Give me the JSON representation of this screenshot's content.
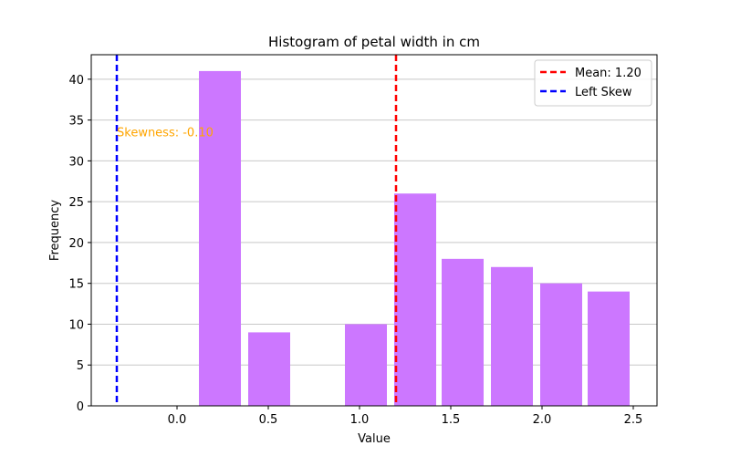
{
  "chart_data": {
    "type": "bar",
    "title": "Histogram of petal width in cm",
    "xlabel": "Value",
    "ylabel": "Frequency",
    "xlim": [
      -0.47,
      2.63
    ],
    "ylim": [
      0,
      43
    ],
    "x_ticks": [
      0.0,
      0.5,
      1.0,
      1.5,
      2.0,
      2.5
    ],
    "x_tick_labels": [
      "0.0",
      "0.5",
      "1.0",
      "1.5",
      "2.0",
      "2.5"
    ],
    "y_ticks": [
      0,
      5,
      10,
      15,
      20,
      25,
      30,
      35,
      40
    ],
    "y_tick_labels": [
      "0",
      "5",
      "10",
      "15",
      "20",
      "25",
      "30",
      "35",
      "40"
    ],
    "grid": "horizontal",
    "bar_color": "#cc77ff",
    "bins": [
      {
        "start": 0.12,
        "end": 0.35,
        "count": 41
      },
      {
        "start": 0.39,
        "end": 0.62,
        "count": 9
      },
      {
        "start": 0.65,
        "end": 0.88,
        "count": 0
      },
      {
        "start": 0.92,
        "end": 1.15,
        "count": 10
      },
      {
        "start": 1.19,
        "end": 1.42,
        "count": 26
      },
      {
        "start": 1.45,
        "end": 1.68,
        "count": 18
      },
      {
        "start": 1.72,
        "end": 1.95,
        "count": 17
      },
      {
        "start": 1.99,
        "end": 2.22,
        "count": 15
      },
      {
        "start": 2.25,
        "end": 2.48,
        "count": 14
      }
    ],
    "vlines": [
      {
        "x": 1.2,
        "color": "#ff0000",
        "label": "Mean: 1.20"
      },
      {
        "x": -0.33,
        "color": "#0000ff",
        "label": "Left Skew"
      }
    ],
    "annotation": {
      "text": "Skewness: -0.10",
      "x": -0.33,
      "y": 33,
      "color": "#ffa500"
    },
    "legend_position": "top-right"
  }
}
